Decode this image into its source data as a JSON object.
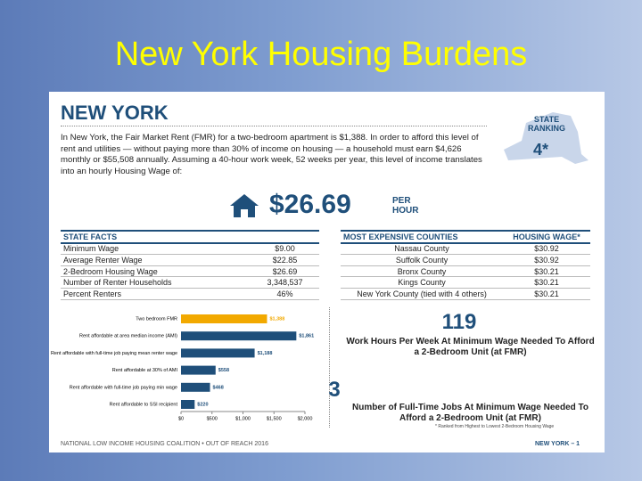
{
  "slide": {
    "title": "New York Housing Burdens"
  },
  "report": {
    "state": "NEW YORK",
    "intro": "In New York, the Fair Market Rent (FMR) for a two-bedroom apartment is $1,388. In order to afford this level of rent and utilities — without paying more than 30% of income on housing — a household must earn $4,626 monthly or $55,508 annually. Assuming a 40-hour work week, 52 weeks per year, this level of income translates into an hourly Housing Wage of:",
    "housing_wage": "$26.69",
    "housing_wage_unit": "PER HOUR",
    "ranking_label": "STATE RANKING",
    "ranking": "4*",
    "state_facts": {
      "header": "STATE FACTS",
      "rows": [
        [
          "Minimum Wage",
          "$9.00"
        ],
        [
          "Average Renter Wage",
          "$22.85"
        ],
        [
          "2-Bedroom Housing Wage",
          "$26.69"
        ],
        [
          "Number of Renter Households",
          "3,348,537"
        ],
        [
          "Percent Renters",
          "46%"
        ]
      ]
    },
    "counties": {
      "headers": [
        "MOST EXPENSIVE COUNTIES",
        "HOUSING WAGE*"
      ],
      "rows": [
        [
          "Nassau County",
          "$30.92"
        ],
        [
          "Suffolk County",
          "$30.92"
        ],
        [
          "Bronx County",
          "$30.21"
        ],
        [
          "Kings County",
          "$30.21"
        ],
        [
          "New York County (tied with 4 others)",
          "$30.21"
        ]
      ]
    },
    "chart": {
      "type": "bar",
      "categories": [
        "Two bedroom FMR",
        "Rent affordable at area median income (AMI)",
        "Rent affordable with full-time job paying mean renter wage",
        "Rent affordable at 30% of AMI",
        "Rent affordable with full-time job paying min wage",
        "Rent affordable to SSI recipient"
      ],
      "values": [
        1388,
        1861,
        1188,
        558,
        468,
        220
      ],
      "value_labels": [
        "$1,388",
        "$1,861",
        "$1,188",
        "$558",
        "$468",
        "$220"
      ],
      "colors": [
        "#f2a900",
        "#1f4f7a",
        "#1f4f7a",
        "#1f4f7a",
        "#1f4f7a",
        "#1f4f7a"
      ],
      "xlim": [
        0,
        2000
      ],
      "xticks": [
        {
          "value": 0,
          "label": "$0"
        },
        {
          "value": 500,
          "label": "$500"
        },
        {
          "value": 1000,
          "label": "$1,000"
        },
        {
          "value": 1500,
          "label": "$1,500"
        },
        {
          "value": 2000,
          "label": "$2,000"
        }
      ]
    },
    "stats": [
      {
        "value": 119,
        "label": "Work Hours Per Week At Minimum Wage Needed To Afford a 2-Bedroom Unit (at FMR)"
      },
      {
        "value": 3,
        "label": "Number of Full-Time Jobs At Minimum Wage Needed To Afford a 2-Bedroom Unit (at FMR)"
      }
    ],
    "footnote": "* Ranked from Highest to Lowest 2-Bedroom Housing Wage",
    "footer_left": "NATIONAL LOW INCOME HOUSING COALITION • OUT OF REACH 2016",
    "footer_right": "NEW YORK – 1"
  }
}
